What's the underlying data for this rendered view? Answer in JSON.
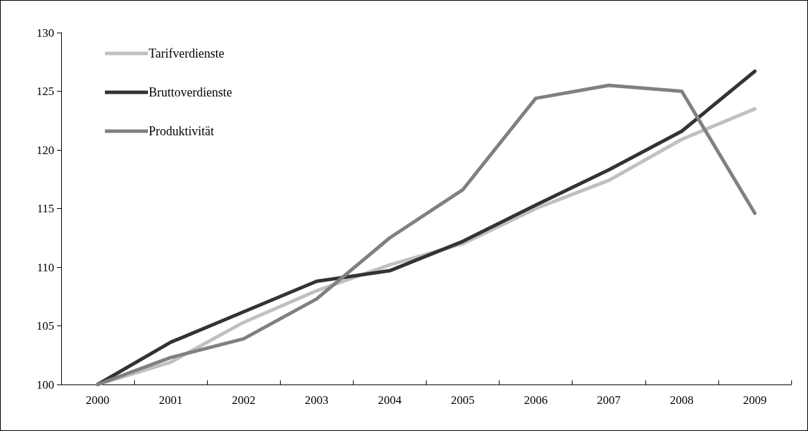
{
  "chart_data": {
    "type": "line",
    "categories": [
      "2000",
      "2001",
      "2002",
      "2003",
      "2004",
      "2005",
      "2006",
      "2007",
      "2008",
      "2009"
    ],
    "series": [
      {
        "name": "Tarifverdienste",
        "color": "#c0c0c0",
        "values": [
          100,
          101.9,
          105.3,
          108,
          110.2,
          112,
          115,
          117.4,
          120.9,
          123.5
        ]
      },
      {
        "name": "Bruttoverdienste",
        "color": "#333333",
        "values": [
          100,
          103.6,
          106.2,
          108.8,
          109.7,
          112.2,
          115.3,
          118.3,
          121.6,
          126.7
        ]
      },
      {
        "name": "Produktivität",
        "color": "#808080",
        "values": [
          100,
          102.3,
          103.9,
          107.3,
          112.5,
          116.6,
          124.4,
          125.5,
          125,
          114.6
        ]
      }
    ],
    "ylim": [
      100,
      130
    ],
    "yticks": [
      100,
      105,
      110,
      115,
      120,
      125,
      130
    ],
    "grid": false,
    "legend": "top left",
    "marker": "none",
    "line_style": "solid"
  }
}
